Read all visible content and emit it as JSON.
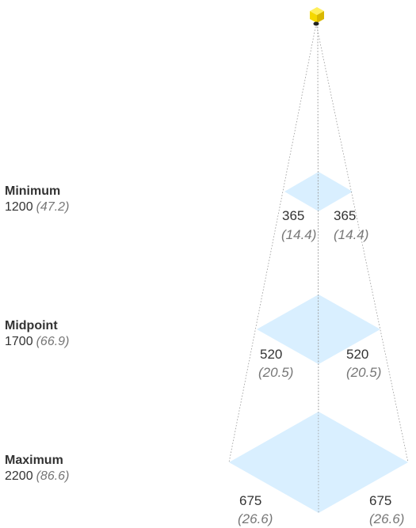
{
  "levels": [
    {
      "title": "Minimum",
      "distance": "1200",
      "distance_in": "(47.2)",
      "fov_left": "365",
      "fov_left_in": "(14.4)",
      "fov_right": "365",
      "fov_right_in": "(14.4)"
    },
    {
      "title": "Midpoint",
      "distance": "1700",
      "distance_in": "(66.9)",
      "fov_left": "520",
      "fov_left_in": "(20.5)",
      "fov_right": "520",
      "fov_right_in": "(20.5)"
    },
    {
      "title": "Maximum",
      "distance": "2200",
      "distance_in": "(86.6)",
      "fov_left": "675",
      "fov_left_in": "(26.6)",
      "fov_right": "675",
      "fov_right_in": "(26.6)"
    }
  ],
  "colors": {
    "plane_fill": "#d9efff",
    "sensor_body": "#f5d800",
    "sensor_lens": "#222222",
    "ray": "#9a9a9a"
  },
  "icons": {
    "sensor": "sensor-cube-icon"
  }
}
